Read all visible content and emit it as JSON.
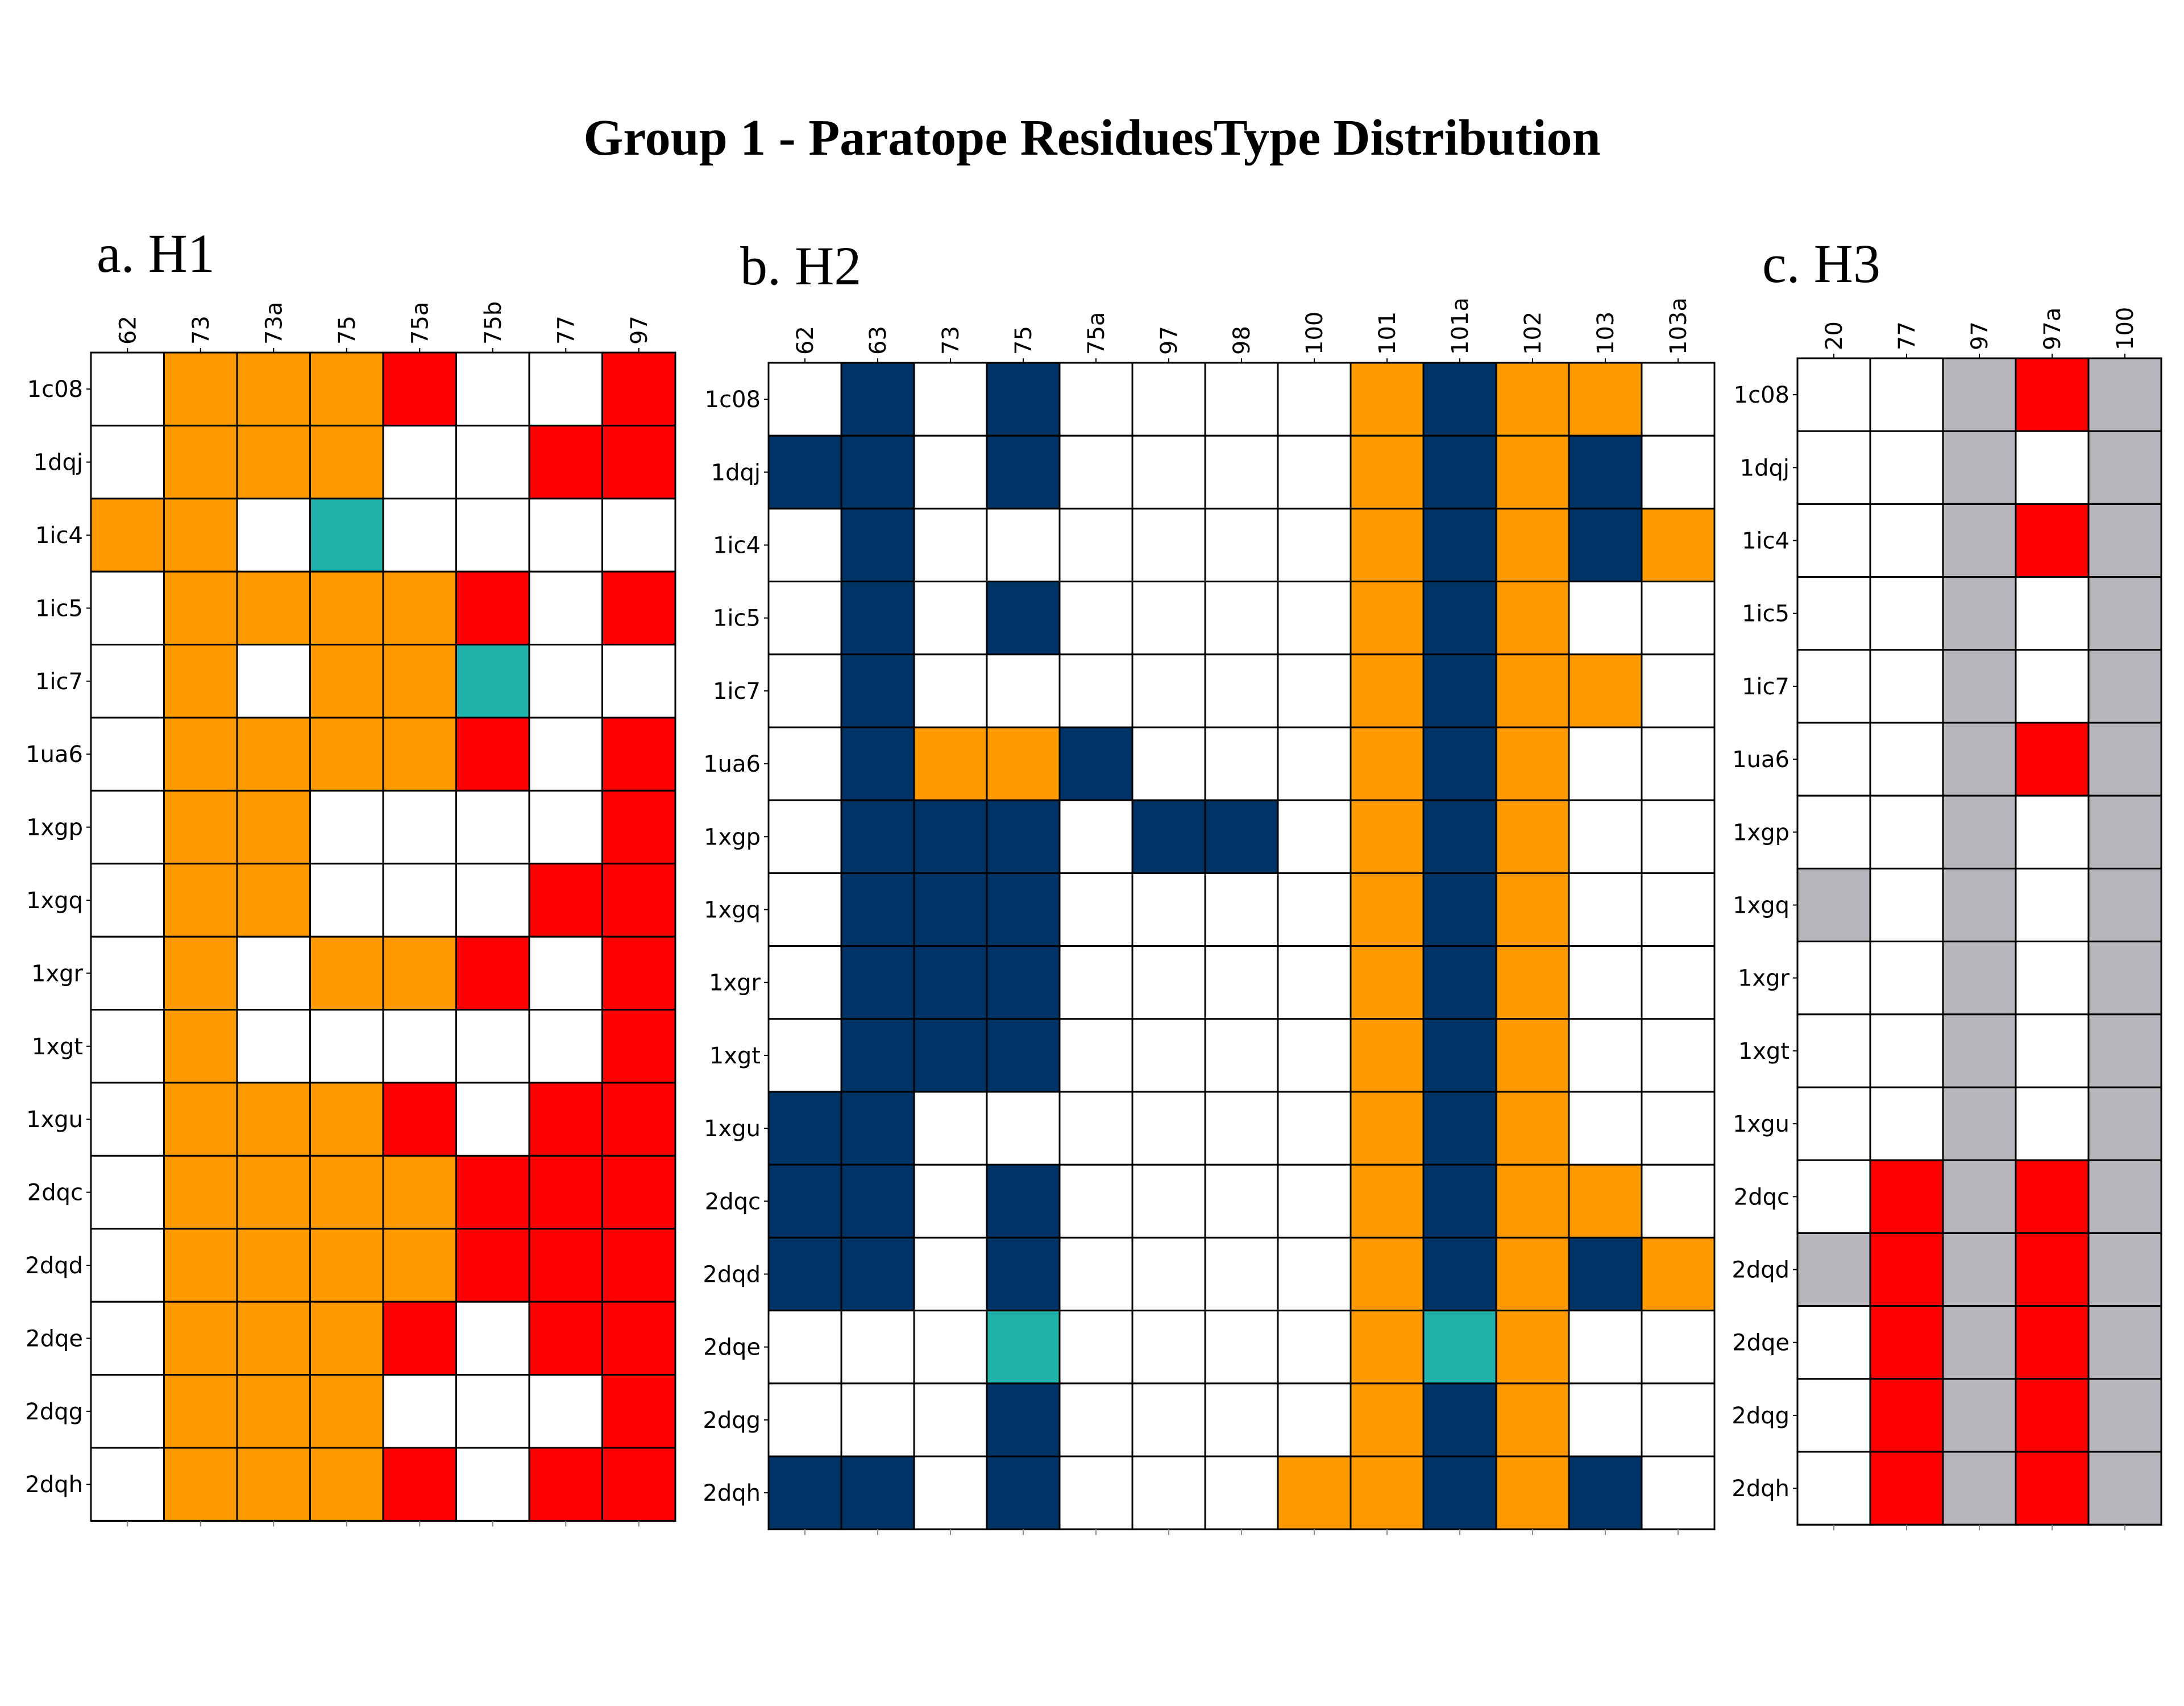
{
  "title": "Group 1 - Paratope ResiduesType Distribution",
  "colors": {
    "O": "#FF9900",
    "R": "#FF0000",
    "T": "#20B2AA",
    "N": "#003366",
    "G": "#B8B6BC",
    "W": "#FFFFFF"
  },
  "chart_data": [
    {
      "type": "heatmap",
      "title": "a. H1",
      "columns": [
        "62",
        "73",
        "73a",
        "75",
        "75a",
        "75b",
        "77",
        "97"
      ],
      "rows": [
        "1c08",
        "1dqj",
        "1ic4",
        "1ic5",
        "1ic7",
        "1ua6",
        "1xgp",
        "1xgq",
        "1xgr",
        "1xgt",
        "1xgu",
        "2dqc",
        "2dqd",
        "2dqe",
        "2dqg",
        "2dqh"
      ],
      "cells": [
        "WOOORWWR",
        "WOOOWWRR",
        "OOWTWWWW",
        "WOOOORWR",
        "WOWOOTWW",
        "WOOOORWR",
        "WOOWWWWR",
        "WOOWWWRR",
        "WOWOORWR",
        "WOWWWWWR",
        "WOOORWRR",
        "WOOOORRR",
        "WOOOORRR",
        "WOOORWRR",
        "WOOOWWWR",
        "WOOORWRR"
      ]
    },
    {
      "type": "heatmap",
      "title": "b. H2",
      "columns": [
        "62",
        "63",
        "73",
        "75",
        "75a",
        "97",
        "98",
        "100",
        "101",
        "101a",
        "102",
        "103",
        "103a"
      ],
      "rows": [
        "1c08",
        "1dqj",
        "1ic4",
        "1ic5",
        "1ic7",
        "1ua6",
        "1xgp",
        "1xgq",
        "1xgr",
        "1xgt",
        "1xgu",
        "2dqc",
        "2dqd",
        "2dqe",
        "2dqg",
        "2dqh"
      ],
      "cells": [
        "WNWNWWWWONOOW",
        "NNWNWWWWONONW",
        "WNWWWWWWONONO",
        "WNWNWWWWONOWW",
        "WNWWWWWWONOOW",
        "WNOONWWWONOWW",
        "WNNNWNNWONOWW",
        "WNNNWWWWONOWW",
        "WNNNWWWWONOWW",
        "WNNNWWWWONOWW",
        "NNWWWWWWONOWW",
        "NNWNWWWWONOOW",
        "NNWNWWWWONONO",
        "WWWTWWWWOTOWW",
        "WWWNWWWWONOWW",
        "NNWNWWWOONONW"
      ]
    },
    {
      "type": "heatmap",
      "title": "c. H3",
      "columns": [
        "20",
        "77",
        "97",
        "97a",
        "100"
      ],
      "rows": [
        "1c08",
        "1dqj",
        "1ic4",
        "1ic5",
        "1ic7",
        "1ua6",
        "1xgp",
        "1xgq",
        "1xgr",
        "1xgt",
        "1xgu",
        "2dqc",
        "2dqd",
        "2dqe",
        "2dqg",
        "2dqh"
      ],
      "cells": [
        "WWGRG",
        "WWGWG",
        "WWGRG",
        "WWGWG",
        "WWGWG",
        "WWGRG",
        "WWGWG",
        "GWGWG",
        "WWGWG",
        "WWGWG",
        "WWGWG",
        "WRGRG",
        "GRGRG",
        "WRGRG",
        "WRGRG",
        "WRGRG"
      ]
    }
  ]
}
